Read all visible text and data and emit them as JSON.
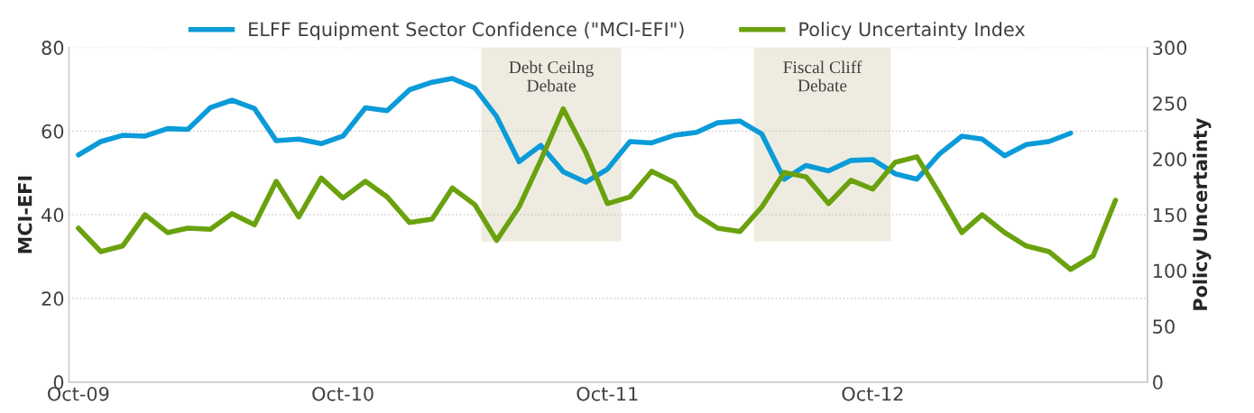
{
  "chart_data": {
    "type": "line",
    "x": [
      "2009-10",
      "2009-11",
      "2009-12",
      "2010-01",
      "2010-02",
      "2010-03",
      "2010-04",
      "2010-05",
      "2010-06",
      "2010-07",
      "2010-08",
      "2010-09",
      "2010-10",
      "2010-11",
      "2010-12",
      "2011-01",
      "2011-02",
      "2011-03",
      "2011-04",
      "2011-05",
      "2011-06",
      "2011-07",
      "2011-08",
      "2011-09",
      "2011-10",
      "2011-11",
      "2011-12",
      "2012-01",
      "2012-02",
      "2012-03",
      "2012-04",
      "2012-05",
      "2012-06",
      "2012-07",
      "2012-08",
      "2012-09",
      "2012-10",
      "2012-11",
      "2012-12",
      "2013-01",
      "2013-02",
      "2013-03",
      "2013-04",
      "2013-05",
      "2013-06",
      "2013-07",
      "2013-08",
      "2013-09"
    ],
    "series": [
      {
        "name": "ELFF Equipment Sector Confidence (\"MCI-EFI\")",
        "color": "#0b9bd8",
        "values": [
          54.3,
          57.5,
          59.0,
          58.8,
          60.6,
          60.4,
          65.6,
          67.4,
          65.4,
          57.7,
          58.1,
          57.0,
          58.8,
          65.6,
          64.9,
          69.9,
          71.7,
          72.6,
          70.3,
          63.5,
          52.7,
          56.6,
          50.3,
          47.8,
          50.9,
          57.5,
          57.2,
          59.0,
          59.7,
          62.0,
          62.4,
          59.3,
          48.5,
          51.8,
          50.5,
          53.0,
          53.2,
          49.8,
          48.5,
          54.5,
          58.8,
          58.1,
          54.1,
          56.8,
          57.5,
          59.5,
          null,
          null
        ]
      },
      {
        "name": "Policy Uncertainty Index",
        "color": "#6aa10e",
        "axis": "y2",
        "values": [
          138,
          117,
          122,
          150,
          134,
          138,
          137,
          151,
          141,
          180,
          148,
          183,
          165,
          180,
          166,
          143,
          146,
          174,
          159,
          127,
          157,
          199,
          245,
          206,
          160,
          166,
          189,
          179,
          150,
          138,
          135,
          157,
          188,
          184,
          160,
          181,
          173,
          197,
          202,
          169,
          134,
          150,
          134,
          122,
          117,
          101,
          113,
          163
        ]
      }
    ],
    "ylabel": "MCI-EFI",
    "y2label": "Policy Uncertainty",
    "xlim": [
      "2009-09-18",
      "2013-10-15"
    ],
    "xticks": [
      {
        "value": "2009-10-01",
        "label": "Oct-09"
      },
      {
        "value": "2010-10-01",
        "label": "Oct-10"
      },
      {
        "value": "2011-10-01",
        "label": "Oct-11"
      },
      {
        "value": "2012-10-01",
        "label": "Oct-12"
      }
    ],
    "ylim": [
      0,
      80
    ],
    "yticks": [
      0,
      20,
      40,
      60,
      80
    ],
    "y2lim": [
      0,
      300
    ],
    "y2ticks": [
      0,
      50,
      100,
      150,
      200,
      250,
      300
    ],
    "bands": [
      {
        "axis": "x",
        "from": "2011-04-10",
        "to": "2011-10-20",
        "label": "Debt Ceilng\nDebate",
        "color": "#e2dfcc"
      },
      {
        "axis": "x",
        "from": "2012-04-20",
        "to": "2012-10-26",
        "label": "Fiscal Cliff\nDebate",
        "color": "#e2dfcc"
      }
    ],
    "grid": "y",
    "legend": "top",
    "line_style": "solid",
    "marker": "none"
  }
}
